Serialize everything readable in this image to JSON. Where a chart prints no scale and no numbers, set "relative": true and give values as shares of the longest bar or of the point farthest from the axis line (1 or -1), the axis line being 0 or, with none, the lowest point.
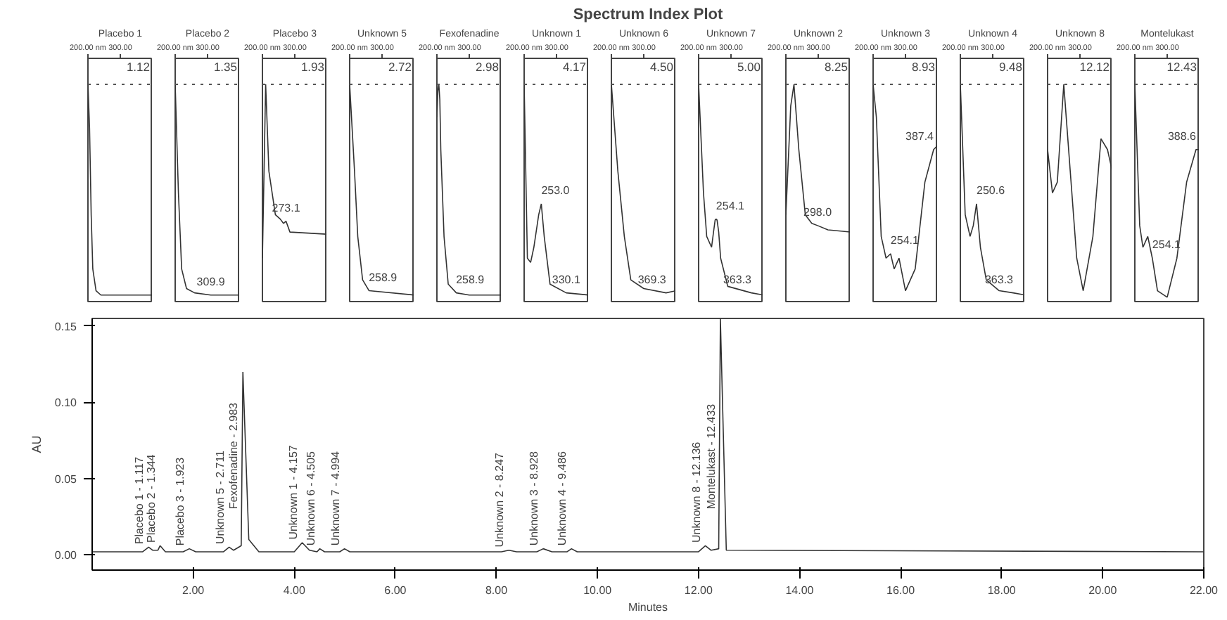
{
  "chart_data": [
    {
      "type": "other",
      "title": "Spectrum Index Plot"
    },
    {
      "type": "line",
      "title": "Placebo 1",
      "relative": true,
      "color": "#333333",
      "xlim": [
        200,
        400
      ],
      "xticks": [
        {
          "value": 200,
          "label": "200.00 nm"
        },
        {
          "value": 300,
          "label": "300.00"
        }
      ],
      "ref_lines": [
        {
          "axis": "y",
          "value": 1,
          "line_style": "dotted"
        }
      ],
      "annotations": [
        "1.12"
      ],
      "x": [
        200,
        205,
        210,
        215,
        225,
        240,
        400
      ],
      "values": [
        1,
        0.8,
        0.4,
        0.15,
        0.05,
        0.03,
        0.03
      ]
    },
    {
      "type": "line",
      "title": "Placebo 2",
      "relative": true,
      "color": "#333333",
      "xlim": [
        200,
        400
      ],
      "xticks": [
        {
          "value": 200,
          "label": "200.00 nm"
        },
        {
          "value": 300,
          "label": "300.00"
        }
      ],
      "ref_lines": [
        {
          "axis": "y",
          "value": 1,
          "line_style": "dotted"
        }
      ],
      "annotations": [
        "1.35",
        {
          "text": "309.9",
          "x": 310,
          "y": 0.03
        }
      ],
      "x": [
        200,
        210,
        220,
        235,
        260,
        310,
        400
      ],
      "values": [
        1,
        0.5,
        0.15,
        0.06,
        0.04,
        0.03,
        0.03
      ]
    },
    {
      "type": "line",
      "title": "Placebo 3",
      "relative": true,
      "color": "#333333",
      "xlim": [
        200,
        400
      ],
      "xticks": [
        {
          "value": 200,
          "label": "200.00 nm"
        },
        {
          "value": 300,
          "label": "300.00"
        }
      ],
      "ref_lines": [
        {
          "axis": "y",
          "value": 1,
          "line_style": "dotted"
        }
      ],
      "annotations": [
        "1.93",
        {
          "text": "273.1",
          "x": 273,
          "y": 0.37
        }
      ],
      "x": [
        200,
        210,
        220,
        240,
        255,
        265,
        273,
        285,
        400
      ],
      "values": [
        0.2,
        1,
        0.6,
        0.4,
        0.38,
        0.36,
        0.37,
        0.32,
        0.31
      ]
    },
    {
      "type": "line",
      "title": "Unknown 5",
      "relative": true,
      "color": "#333333",
      "xlim": [
        200,
        400
      ],
      "xticks": [
        {
          "value": 200,
          "label": "200.00 nm"
        },
        {
          "value": 300,
          "label": "300.00"
        }
      ],
      "ref_lines": [
        {
          "axis": "y",
          "value": 1,
          "line_style": "dotted"
        }
      ],
      "annotations": [
        "2.72",
        {
          "text": "258.9",
          "x": 259,
          "y": 0.05
        }
      ],
      "x": [
        200,
        215,
        225,
        240,
        260,
        400
      ],
      "values": [
        1,
        0.6,
        0.3,
        0.1,
        0.05,
        0.03
      ]
    },
    {
      "type": "line",
      "title": "Fexofenadine",
      "relative": true,
      "color": "#333333",
      "xlim": [
        200,
        400
      ],
      "xticks": [
        {
          "value": 200,
          "label": "200.00 nm"
        },
        {
          "value": 300,
          "label": "300.00"
        }
      ],
      "ref_lines": [
        {
          "axis": "y",
          "value": 1,
          "line_style": "dotted"
        }
      ],
      "annotations": [
        "2.98",
        {
          "text": "258.9",
          "x": 259,
          "y": 0.04
        }
      ],
      "x": [
        200,
        203,
        206,
        209,
        212,
        222,
        235,
        260,
        300,
        400
      ],
      "values": [
        0.85,
        0.97,
        1,
        0.93,
        0.7,
        0.3,
        0.08,
        0.04,
        0.03,
        0.03
      ]
    },
    {
      "type": "line",
      "title": "Unknown 1",
      "relative": true,
      "color": "#333333",
      "xlim": [
        200,
        400
      ],
      "xticks": [
        {
          "value": 200,
          "label": "200.00 nm"
        },
        {
          "value": 300,
          "label": "300.00"
        }
      ],
      "ref_lines": [
        {
          "axis": "y",
          "value": 1,
          "line_style": "dotted"
        }
      ],
      "annotations": [
        "4.17",
        {
          "text": "253.0",
          "x": 253,
          "y": 0.45
        },
        {
          "text": "330.1",
          "x": 330,
          "y": 0.04
        }
      ],
      "x": [
        200,
        210,
        220,
        230,
        245,
        253,
        262,
        280,
        330,
        400
      ],
      "values": [
        1,
        0.2,
        0.18,
        0.25,
        0.4,
        0.45,
        0.3,
        0.08,
        0.04,
        0.03
      ]
    },
    {
      "type": "line",
      "title": "Unknown 6",
      "relative": true,
      "color": "#333333",
      "xlim": [
        200,
        400
      ],
      "xticks": [
        {
          "value": 200,
          "label": "200.00 nm"
        },
        {
          "value": 300,
          "label": "300.00"
        }
      ],
      "ref_lines": [
        {
          "axis": "y",
          "value": 1,
          "line_style": "dotted"
        }
      ],
      "annotations": [
        "4.50",
        {
          "text": "369.3",
          "x": 369,
          "y": 0.04
        }
      ],
      "x": [
        200,
        220,
        240,
        260,
        300,
        369,
        400
      ],
      "values": [
        1,
        0.6,
        0.3,
        0.1,
        0.06,
        0.04,
        0.05
      ]
    },
    {
      "type": "line",
      "title": "Unknown 7",
      "relative": true,
      "color": "#333333",
      "xlim": [
        200,
        400
      ],
      "xticks": [
        {
          "value": 200,
          "label": "200.00 nm"
        },
        {
          "value": 300,
          "label": "300.00"
        }
      ],
      "ref_lines": [
        {
          "axis": "y",
          "value": 1,
          "line_style": "dotted"
        }
      ],
      "annotations": [
        "5.00",
        {
          "text": "254.1",
          "x": 254,
          "y": 0.38
        },
        {
          "text": "363.3",
          "x": 363,
          "y": 0.04
        }
      ],
      "x": [
        200,
        215,
        225,
        240,
        246,
        251,
        254,
        257,
        262,
        268,
        290,
        363,
        400
      ],
      "values": [
        1,
        0.5,
        0.3,
        0.25,
        0.32,
        0.375,
        0.38,
        0.375,
        0.32,
        0.2,
        0.07,
        0.04,
        0.03
      ]
    },
    {
      "type": "line",
      "title": "Unknown 2",
      "relative": true,
      "color": "#333333",
      "xlim": [
        200,
        400
      ],
      "xticks": [
        {
          "value": 200,
          "label": "200.00 nm"
        },
        {
          "value": 300,
          "label": "300.00"
        }
      ],
      "ref_lines": [
        {
          "axis": "y",
          "value": 1,
          "line_style": "dotted"
        }
      ],
      "annotations": [
        "8.25",
        {
          "text": "298.0",
          "x": 298,
          "y": 0.35
        }
      ],
      "x": [
        200,
        215,
        225,
        240,
        260,
        280,
        298,
        330,
        400
      ],
      "values": [
        0.4,
        0.9,
        1,
        0.7,
        0.4,
        0.36,
        0.35,
        0.33,
        0.32
      ]
    },
    {
      "type": "line",
      "title": "Unknown 3",
      "relative": true,
      "color": "#333333",
      "xlim": [
        200,
        400
      ],
      "xticks": [
        {
          "value": 200,
          "label": "200.00 nm"
        },
        {
          "value": 300,
          "label": "300.00"
        }
      ],
      "ref_lines": [
        {
          "axis": "y",
          "value": 1,
          "line_style": "dotted"
        }
      ],
      "annotations": [
        "8.93",
        {
          "text": "387.4",
          "x": 387,
          "y": 0.7
        },
        {
          "text": "254.1",
          "x": 254,
          "y": 0.22
        }
      ],
      "x": [
        200,
        210,
        225,
        240,
        254,
        265,
        280,
        300,
        330,
        360,
        387,
        400
      ],
      "values": [
        1,
        0.85,
        0.3,
        0.2,
        0.22,
        0.15,
        0.2,
        0.05,
        0.15,
        0.55,
        0.7,
        0.72
      ]
    },
    {
      "type": "line",
      "title": "Unknown 4",
      "relative": true,
      "color": "#333333",
      "xlim": [
        200,
        400
      ],
      "xticks": [
        {
          "value": 200,
          "label": "200.00 nm"
        },
        {
          "value": 300,
          "label": "300.00"
        }
      ],
      "ref_lines": [
        {
          "axis": "y",
          "value": 1,
          "line_style": "dotted"
        }
      ],
      "annotations": [
        "9.48",
        {
          "text": "250.6",
          "x": 250,
          "y": 0.45
        },
        {
          "text": "363.3",
          "x": 363,
          "y": 0.04
        }
      ],
      "x": [
        200,
        215,
        230,
        240,
        250,
        262,
        280,
        320,
        363,
        400
      ],
      "values": [
        1,
        0.4,
        0.3,
        0.35,
        0.45,
        0.25,
        0.1,
        0.05,
        0.04,
        0.03
      ]
    },
    {
      "type": "line",
      "title": "Unknown 8",
      "relative": true,
      "color": "#333333",
      "xlim": [
        200,
        400
      ],
      "xticks": [
        {
          "value": 200,
          "label": "200.00 nm"
        },
        {
          "value": 300,
          "label": "300.00"
        }
      ],
      "ref_lines": [
        {
          "axis": "y",
          "value": 1,
          "line_style": "dotted"
        }
      ],
      "annotations": [
        "12.12"
      ],
      "x": [
        200,
        215,
        230,
        250,
        270,
        290,
        310,
        340,
        365,
        385,
        400
      ],
      "values": [
        0.7,
        0.5,
        0.55,
        1,
        0.6,
        0.2,
        0.05,
        0.3,
        0.75,
        0.7,
        0.6
      ]
    },
    {
      "type": "line",
      "title": "Montelukast",
      "relative": true,
      "color": "#333333",
      "xlim": [
        200,
        400
      ],
      "xticks": [
        {
          "value": 200,
          "label": "200.00 nm"
        },
        {
          "value": 300,
          "label": "300.00"
        }
      ],
      "ref_lines": [
        {
          "axis": "y",
          "value": 1,
          "line_style": "dotted"
        }
      ],
      "annotations": [
        "12.43",
        {
          "text": "388.6",
          "x": 389,
          "y": 0.7
        },
        {
          "text": "254.1",
          "x": 254,
          "y": 0.2
        }
      ],
      "x": [
        200,
        215,
        225,
        240,
        254,
        270,
        300,
        330,
        360,
        389,
        400
      ],
      "values": [
        1,
        0.35,
        0.25,
        0.3,
        0.2,
        0.05,
        0.02,
        0.2,
        0.55,
        0.7,
        0.7
      ]
    },
    {
      "type": "line",
      "xlabel": "Minutes",
      "ylabel": "AU",
      "color": "#333333",
      "grid": false,
      "xlim": [
        0,
        22
      ],
      "ylim": [
        -0.01,
        0.155
      ],
      "xticks": [
        {
          "value": 2,
          "label": "2.00"
        },
        {
          "value": 4,
          "label": "4.00"
        },
        {
          "value": 6,
          "label": "6.00"
        },
        {
          "value": 8,
          "label": "8.00"
        },
        {
          "value": 10,
          "label": "10.00"
        },
        {
          "value": 12,
          "label": "12.00"
        },
        {
          "value": 14,
          "label": "14.00"
        },
        {
          "value": 16,
          "label": "16.00"
        },
        {
          "value": 18,
          "label": "18.00"
        },
        {
          "value": 20,
          "label": "20.00"
        },
        {
          "value": 22,
          "label": "22.00"
        }
      ],
      "yticks": [
        {
          "value": 0,
          "label": "0.00"
        },
        {
          "value": 0.05,
          "label": "0.05"
        },
        {
          "value": 0.1,
          "label": "0.10"
        },
        {
          "value": 0.15,
          "label": "0.15"
        }
      ],
      "x": [
        0,
        1.0,
        1.117,
        1.2,
        1.3,
        1.344,
        1.45,
        1.8,
        1.923,
        2.05,
        2.6,
        2.711,
        2.8,
        2.95,
        2.983,
        3.1,
        3.3,
        4.0,
        4.157,
        4.3,
        4.45,
        4.505,
        4.6,
        4.9,
        4.994,
        5.1,
        8.1,
        8.247,
        8.4,
        8.8,
        8.928,
        9.1,
        9.4,
        9.486,
        9.6,
        12.0,
        12.136,
        12.25,
        12.4,
        12.433,
        12.55,
        22
      ],
      "values": [
        0.002,
        0.002,
        0.005,
        0.003,
        0.003,
        0.006,
        0.002,
        0.002,
        0.004,
        0.002,
        0.002,
        0.005,
        0.003,
        0.006,
        0.12,
        0.01,
        0.002,
        0.002,
        0.008,
        0.003,
        0.002,
        0.004,
        0.002,
        0.002,
        0.004,
        0.002,
        0.002,
        0.003,
        0.002,
        0.002,
        0.004,
        0.002,
        0.002,
        0.004,
        0.002,
        0.002,
        0.006,
        0.003,
        0.004,
        0.155,
        0.003,
        0.002
      ],
      "annotations": [
        {
          "text": "Placebo 1 - 1.117",
          "x": 1.117,
          "y": 0.007
        },
        {
          "text": "Placebo 2 - 1.344",
          "x": 1.344,
          "y": 0.008
        },
        {
          "text": "Placebo 3 - 1.923",
          "x": 1.923,
          "y": 0.006
        },
        {
          "text": "Unknown 5 - 2.711",
          "x": 2.711,
          "y": 0.007
        },
        {
          "text": "Fexofenadine - 2.983",
          "x": 2.983,
          "y": 0.03
        },
        {
          "text": "Unknown 1 - 4.157",
          "x": 4.157,
          "y": 0.01
        },
        {
          "text": "Unknown 6 - 4.505",
          "x": 4.505,
          "y": 0.006
        },
        {
          "text": "Unknown 7 - 4.994",
          "x": 4.994,
          "y": 0.006
        },
        {
          "text": "Unknown 2 - 8.247",
          "x": 8.247,
          "y": 0.005
        },
        {
          "text": "Unknown 3 - 8.928",
          "x": 8.928,
          "y": 0.006
        },
        {
          "text": "Unknown 4 - 9.486",
          "x": 9.486,
          "y": 0.006
        },
        {
          "text": "Unknown 8 - 12.136",
          "x": 12.136,
          "y": 0.008
        },
        {
          "text": "Montelukast - 12.433",
          "x": 12.433,
          "y": 0.03
        }
      ]
    }
  ]
}
